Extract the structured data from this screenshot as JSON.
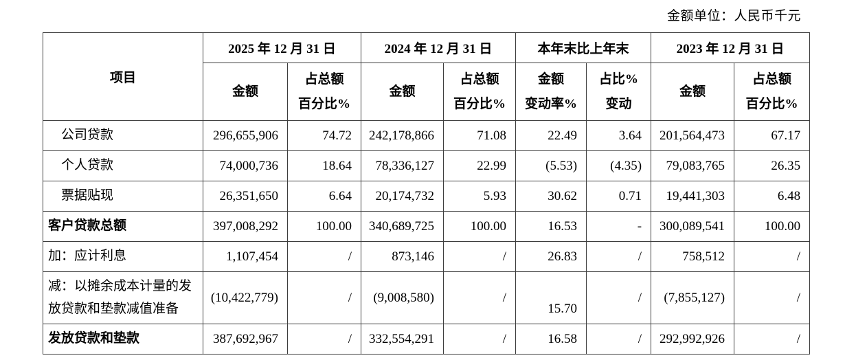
{
  "unit_label": "金额单位：人民币千元",
  "table": {
    "item_header": "项目",
    "groups": [
      {
        "label": "2025 年 12 月 31 日",
        "subcols": [
          [
            "金额"
          ],
          [
            "占总额",
            "百分比%"
          ]
        ]
      },
      {
        "label": "2024 年 12 月 31 日",
        "subcols": [
          [
            "金额"
          ],
          [
            "占总额",
            "百分比%"
          ]
        ]
      },
      {
        "label": "本年末比上年末",
        "subcols": [
          [
            "金额",
            "变动率%"
          ],
          [
            "占比%",
            "变动"
          ]
        ]
      },
      {
        "label": "2023 年 12 月 31 日",
        "subcols": [
          [
            "金额"
          ],
          [
            "占总额",
            "百分比%"
          ]
        ]
      }
    ],
    "rows": [
      {
        "item": "公司贷款",
        "indent": true,
        "bold": false,
        "cells": [
          "296,655,906",
          "74.72",
          "242,178,866",
          "71.08",
          "22.49",
          "3.64",
          "201,564,473",
          "67.17"
        ]
      },
      {
        "item": "个人贷款",
        "indent": true,
        "bold": false,
        "cells": [
          "74,000,736",
          "18.64",
          "78,336,127",
          "22.99",
          "(5.53)",
          "(4.35)",
          "79,083,765",
          "26.35"
        ]
      },
      {
        "item": "票据贴现",
        "indent": true,
        "bold": false,
        "cells": [
          "26,351,650",
          "6.64",
          "20,174,732",
          "5.93",
          "30.62",
          "0.71",
          "19,441,303",
          "6.48"
        ]
      },
      {
        "item": "客户贷款总额",
        "indent": false,
        "bold": true,
        "cells": [
          "397,008,292",
          "100.00",
          "340,689,725",
          "100.00",
          "16.53",
          "-",
          "300,089,541",
          "100.00"
        ]
      },
      {
        "item": "加：应计利息",
        "indent": false,
        "bold": false,
        "cells": [
          "1,107,454",
          "/",
          "873,146",
          "/",
          "26.83",
          "/",
          "758,512",
          "/"
        ]
      },
      {
        "item": "减：以摊余成本计量的发放贷款和垫款减值准备",
        "indent": false,
        "bold": false,
        "tall": true,
        "bottom_align_cell": 4,
        "cells": [
          "(10,422,779)",
          "/",
          "(9,008,580)",
          "/",
          "15.70",
          "/",
          "(7,855,127)",
          "/"
        ]
      },
      {
        "item": "发放贷款和垫款",
        "indent": false,
        "bold": true,
        "cells": [
          "387,692,967",
          "/",
          "332,554,291",
          "/",
          "16.58",
          "/",
          "292,992,926",
          "/"
        ]
      }
    ]
  }
}
